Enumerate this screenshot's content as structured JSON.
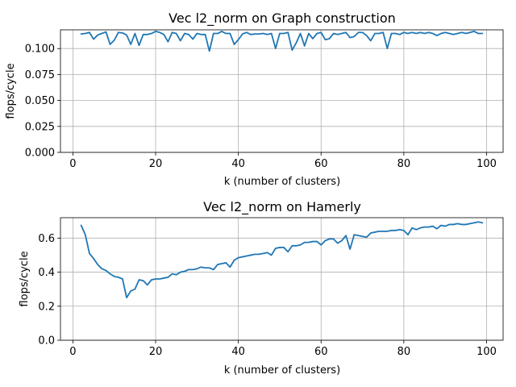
{
  "chart_data": [
    {
      "type": "line",
      "title": "Vec l2_norm on Graph construction",
      "xlabel": "k (number of clusters)",
      "ylabel": "flops/cycle",
      "xlim": [
        -3,
        104
      ],
      "ylim": [
        0.0,
        0.118
      ],
      "xticks": [
        0,
        20,
        40,
        60,
        80,
        100
      ],
      "yticks": [
        0.0,
        0.025,
        0.05,
        0.075,
        0.1
      ],
      "ytick_labels": [
        "0.000",
        "0.025",
        "0.050",
        "0.075",
        "0.100"
      ],
      "grid": true,
      "series": [
        {
          "color": "#1f77b4",
          "x": [
            2,
            3,
            4,
            5,
            6,
            7,
            8,
            9,
            10,
            11,
            12,
            13,
            14,
            15,
            16,
            17,
            18,
            19,
            20,
            21,
            22,
            23,
            24,
            25,
            26,
            27,
            28,
            29,
            30,
            31,
            32,
            33,
            34,
            35,
            36,
            37,
            38,
            39,
            40,
            41,
            42,
            43,
            44,
            45,
            46,
            47,
            48,
            49,
            50,
            51,
            52,
            53,
            54,
            55,
            56,
            57,
            58,
            59,
            60,
            61,
            62,
            63,
            64,
            65,
            66,
            67,
            68,
            69,
            70,
            71,
            72,
            73,
            74,
            75,
            76,
            77,
            78,
            79,
            80,
            81,
            82,
            83,
            84,
            85,
            86,
            87,
            88,
            89,
            90,
            91,
            92,
            93,
            94,
            95,
            96,
            97,
            98,
            99
          ],
          "values": [
            0.114,
            0.1145,
            0.1155,
            0.109,
            0.113,
            0.1145,
            0.116,
            0.104,
            0.108,
            0.1155,
            0.115,
            0.113,
            0.104,
            0.1145,
            0.103,
            0.1135,
            0.1135,
            0.1145,
            0.1165,
            0.1155,
            0.1135,
            0.1065,
            0.1155,
            0.1145,
            0.1075,
            0.1145,
            0.1135,
            0.109,
            0.1145,
            0.1135,
            0.1135,
            0.0975,
            0.1145,
            0.1145,
            0.1165,
            0.1145,
            0.1145,
            0.104,
            0.1085,
            0.114,
            0.1155,
            0.1135,
            0.114,
            0.114,
            0.1145,
            0.1135,
            0.1145,
            0.1,
            0.1145,
            0.1145,
            0.1155,
            0.0985,
            0.1055,
            0.1145,
            0.1025,
            0.1145,
            0.1095,
            0.1145,
            0.1155,
            0.1085,
            0.1095,
            0.1145,
            0.1135,
            0.1145,
            0.1155,
            0.1105,
            0.1115,
            0.1155,
            0.1155,
            0.1125,
            0.1075,
            0.1145,
            0.1145,
            0.1155,
            0.1,
            0.1145,
            0.1145,
            0.1135,
            0.1155,
            0.1145,
            0.1155,
            0.1145,
            0.1155,
            0.1145,
            0.1155,
            0.1145,
            0.1125,
            0.1145,
            0.1155,
            0.1145,
            0.1135,
            0.1145,
            0.1155,
            0.1145,
            0.1155,
            0.1165,
            0.1145,
            0.1145
          ]
        }
      ]
    },
    {
      "type": "line",
      "title": "Vec l2_norm on Hamerly",
      "xlabel": "k (number of clusters)",
      "ylabel": "flops/cycle",
      "xlim": [
        -3,
        104
      ],
      "ylim": [
        0.0,
        0.72
      ],
      "xticks": [
        0,
        20,
        40,
        60,
        80,
        100
      ],
      "yticks": [
        0.0,
        0.2,
        0.4,
        0.6
      ],
      "ytick_labels": [
        "0.0",
        "0.2",
        "0.4",
        "0.6"
      ],
      "grid": true,
      "series": [
        {
          "color": "#1f77b4",
          "x": [
            2,
            3,
            4,
            5,
            6,
            7,
            8,
            9,
            10,
            11,
            12,
            13,
            14,
            15,
            16,
            17,
            18,
            19,
            20,
            21,
            22,
            23,
            24,
            25,
            26,
            27,
            28,
            29,
            30,
            31,
            32,
            33,
            34,
            35,
            36,
            37,
            38,
            39,
            40,
            41,
            42,
            43,
            44,
            45,
            46,
            47,
            48,
            49,
            50,
            51,
            52,
            53,
            54,
            55,
            56,
            57,
            58,
            59,
            60,
            61,
            62,
            63,
            64,
            65,
            66,
            67,
            68,
            69,
            70,
            71,
            72,
            73,
            74,
            75,
            76,
            77,
            78,
            79,
            80,
            81,
            82,
            83,
            84,
            85,
            86,
            87,
            88,
            89,
            90,
            91,
            92,
            93,
            94,
            95,
            96,
            97,
            98,
            99
          ],
          "values": [
            0.675,
            0.62,
            0.51,
            0.48,
            0.445,
            0.42,
            0.41,
            0.39,
            0.375,
            0.37,
            0.36,
            0.25,
            0.29,
            0.3,
            0.355,
            0.35,
            0.325,
            0.355,
            0.36,
            0.36,
            0.365,
            0.37,
            0.39,
            0.385,
            0.4,
            0.405,
            0.415,
            0.415,
            0.42,
            0.43,
            0.425,
            0.425,
            0.415,
            0.445,
            0.45,
            0.455,
            0.43,
            0.47,
            0.485,
            0.49,
            0.495,
            0.5,
            0.505,
            0.505,
            0.51,
            0.515,
            0.5,
            0.54,
            0.545,
            0.545,
            0.52,
            0.555,
            0.555,
            0.56,
            0.575,
            0.575,
            0.58,
            0.58,
            0.56,
            0.585,
            0.595,
            0.595,
            0.57,
            0.585,
            0.615,
            0.535,
            0.62,
            0.615,
            0.61,
            0.605,
            0.63,
            0.635,
            0.64,
            0.64,
            0.64,
            0.645,
            0.645,
            0.65,
            0.645,
            0.62,
            0.66,
            0.65,
            0.66,
            0.665,
            0.665,
            0.67,
            0.655,
            0.675,
            0.67,
            0.68,
            0.68,
            0.685,
            0.68,
            0.68,
            0.685,
            0.69,
            0.695,
            0.69
          ]
        }
      ]
    }
  ]
}
